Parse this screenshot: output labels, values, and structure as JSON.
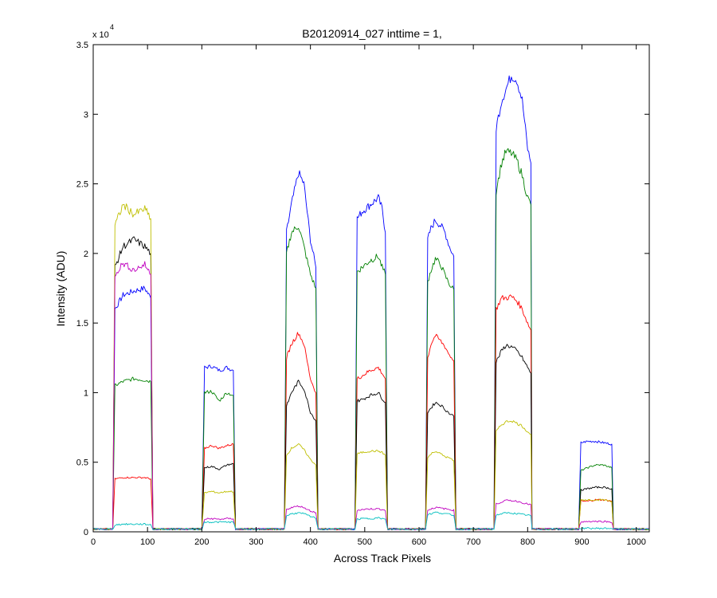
{
  "chart_data": {
    "type": "line",
    "title": "B20120914_027 inttime = 1,",
    "xlabel": "Across Track Pixels",
    "ylabel": "Intensity (ADU)",
    "xlim": [
      0,
      1024
    ],
    "ylim": [
      0,
      35000
    ],
    "xticks": [
      0,
      100,
      200,
      300,
      400,
      500,
      600,
      700,
      800,
      900,
      1000
    ],
    "yticks": [
      0,
      5000,
      10000,
      15000,
      20000,
      25000,
      30000,
      35000
    ],
    "ytick_labels": [
      "0",
      "0.5",
      "1",
      "1.5",
      "2",
      "2.5",
      "3",
      "3.5"
    ],
    "y_multiplier_label": {
      "base": "x 10",
      "exponent": "4"
    },
    "grid": false,
    "legend": "none",
    "x": [
      0,
      36,
      40,
      55,
      75,
      95,
      106,
      110,
      200,
      205,
      218,
      232,
      246,
      258,
      262,
      352,
      356,
      365,
      378,
      388,
      400,
      410,
      414,
      482,
      486,
      495,
      510,
      525,
      532,
      538,
      542,
      612,
      616,
      622,
      630,
      640,
      648,
      656,
      664,
      668,
      738,
      742,
      752,
      760,
      770,
      780,
      790,
      800,
      806,
      808,
      894,
      898,
      910,
      925,
      940,
      955,
      958,
      1024
    ],
    "series": [
      {
        "color": "#0000ff",
        "values": [
          200,
          200,
          16000,
          17000,
          17300,
          17500,
          16800,
          200,
          200,
          11800,
          11900,
          11600,
          11800,
          11600,
          200,
          200,
          21500,
          23500,
          25800,
          25000,
          21000,
          19000,
          200,
          200,
          22500,
          23000,
          23500,
          24000,
          23200,
          21500,
          200,
          200,
          21000,
          21800,
          22400,
          22000,
          21500,
          20500,
          19800,
          200,
          200,
          29000,
          31000,
          31800,
          32800,
          32500,
          31000,
          27500,
          26500,
          200,
          200,
          6400,
          6500,
          6500,
          6400,
          6300,
          200,
          200
        ]
      },
      {
        "color": "#008000",
        "values": [
          200,
          200,
          10500,
          10800,
          11000,
          10900,
          10800,
          200,
          200,
          10000,
          10100,
          9400,
          10000,
          9800,
          200,
          200,
          20000,
          21500,
          22000,
          20500,
          18500,
          17500,
          200,
          200,
          18700,
          19000,
          19500,
          19800,
          19000,
          18500,
          200,
          200,
          18000,
          18800,
          19600,
          19200,
          18400,
          17800,
          17400,
          200,
          200,
          24500,
          26500,
          27300,
          27200,
          26700,
          25600,
          24000,
          23500,
          200,
          200,
          4400,
          4600,
          4800,
          4800,
          4600,
          200,
          200
        ]
      },
      {
        "color": "#ff0000",
        "values": [
          200,
          200,
          3800,
          3900,
          3900,
          3900,
          3800,
          200,
          200,
          6000,
          6200,
          6000,
          6200,
          6300,
          200,
          200,
          12500,
          13500,
          14300,
          13500,
          11000,
          10000,
          200,
          200,
          11000,
          11200,
          11600,
          11800,
          11400,
          11000,
          200,
          200,
          12500,
          13500,
          14100,
          13700,
          13300,
          12700,
          12300,
          200,
          200,
          16000,
          16800,
          16800,
          16900,
          16600,
          16000,
          15000,
          14500,
          200,
          200,
          2200,
          2200,
          2300,
          2300,
          2200,
          200,
          200
        ]
      },
      {
        "color": "#000000",
        "values": [
          200,
          200,
          19000,
          20500,
          21000,
          20500,
          20000,
          200,
          200,
          4600,
          4700,
          4500,
          4800,
          4900,
          200,
          200,
          9000,
          10000,
          10800,
          10300,
          8600,
          8000,
          200,
          200,
          9400,
          9500,
          9800,
          10000,
          9600,
          9300,
          200,
          200,
          8600,
          8900,
          9300,
          9100,
          8800,
          8500,
          8300,
          200,
          200,
          12200,
          13000,
          13400,
          13300,
          13000,
          12500,
          11800,
          11400,
          200,
          200,
          3000,
          3100,
          3200,
          3200,
          3100,
          200,
          200
        ]
      },
      {
        "color": "#bfbf00",
        "values": [
          200,
          200,
          22000,
          23500,
          22800,
          23200,
          22500,
          200,
          200,
          2800,
          2900,
          2800,
          2900,
          2900,
          200,
          200,
          5500,
          6000,
          6300,
          5900,
          5200,
          4800,
          200,
          200,
          5600,
          5700,
          5800,
          5800,
          5700,
          5500,
          200,
          200,
          5300,
          5600,
          5800,
          5600,
          5400,
          5300,
          5100,
          200,
          200,
          7200,
          7700,
          7900,
          8000,
          7800,
          7600,
          7200,
          7000,
          200,
          200,
          2300,
          2300,
          2300,
          2300,
          2200,
          200,
          200
        ]
      },
      {
        "color": "#bf00bf",
        "values": [
          200,
          200,
          18500,
          19300,
          18800,
          19200,
          18500,
          200,
          200,
          900,
          950,
          900,
          950,
          950,
          200,
          200,
          1600,
          1750,
          1850,
          1750,
          1500,
          1400,
          200,
          200,
          1550,
          1600,
          1650,
          1650,
          1600,
          1550,
          200,
          200,
          1550,
          1650,
          1750,
          1700,
          1650,
          1600,
          1550,
          200,
          200,
          2000,
          2150,
          2250,
          2250,
          2200,
          2100,
          2000,
          1950,
          200,
          200,
          700,
          750,
          750,
          750,
          700,
          200,
          200
        ]
      },
      {
        "color": "#00bfbf",
        "values": [
          200,
          200,
          500,
          550,
          550,
          550,
          500,
          200,
          200,
          700,
          700,
          700,
          700,
          700,
          200,
          200,
          1150,
          1300,
          1350,
          1300,
          1100,
          1000,
          200,
          200,
          900,
          950,
          950,
          1000,
          950,
          900,
          200,
          200,
          1250,
          1300,
          1400,
          1350,
          1300,
          1250,
          1200,
          200,
          200,
          1200,
          1300,
          1350,
          1350,
          1300,
          1250,
          1200,
          1150,
          200,
          200,
          250,
          250,
          250,
          250,
          250,
          200,
          200
        ]
      }
    ]
  }
}
